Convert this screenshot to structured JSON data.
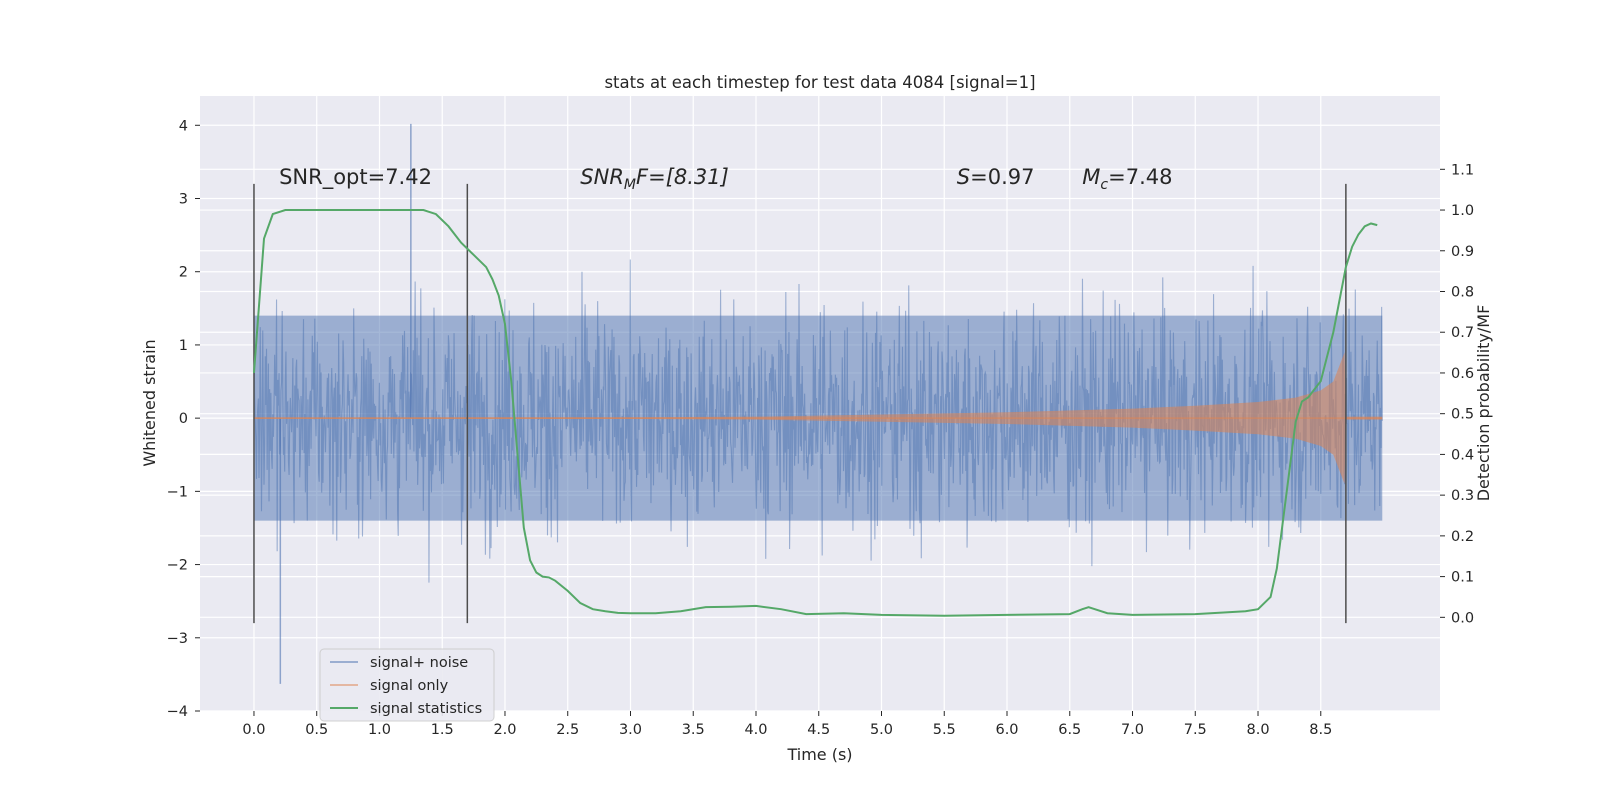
{
  "chart_data": {
    "type": "line",
    "title": "stats at each timestep for test data 4084 [signal=1]",
    "xlabel": "Time (s)",
    "ylabel": "Whitened strain",
    "ylabel_right": "Detection probability/MF",
    "xlim": [
      -0.43,
      9.45
    ],
    "ylim": [
      -4.0,
      4.4
    ],
    "ylim_right": [
      -0.23,
      1.28
    ],
    "xticks": [
      0.0,
      0.5,
      1.0,
      1.5,
      2.0,
      2.5,
      3.0,
      3.5,
      4.0,
      4.5,
      5.0,
      5.5,
      6.0,
      6.5,
      7.0,
      7.5,
      8.0,
      8.5
    ],
    "xtick_labels": [
      "0.0",
      "0.5",
      "1.0",
      "1.5",
      "2.0",
      "2.5",
      "3.0",
      "3.5",
      "4.0",
      "4.5",
      "5.0",
      "5.5",
      "6.0",
      "6.5",
      "7.0",
      "7.5",
      "8.0",
      "8.5"
    ],
    "yticks": [
      4,
      3,
      2,
      1,
      0,
      -1,
      -2,
      -3,
      -4
    ],
    "ytick_labels": [
      "4",
      "3",
      "2",
      "1",
      "0",
      "−1",
      "−2",
      "−3",
      "−4"
    ],
    "yticks_right": [
      1.1,
      1.0,
      0.9,
      0.8,
      0.7,
      0.6,
      0.5,
      0.4,
      0.3,
      0.2,
      0.1,
      0.0
    ],
    "ytick_labels_right": [
      "1.1",
      "1.0",
      "0.9",
      "0.8",
      "0.7",
      "0.6",
      "0.5",
      "0.4",
      "0.3",
      "0.2",
      "0.1",
      "0.0"
    ],
    "grid": true,
    "legend_position": "lower-left",
    "legend": [
      "signal+ noise",
      "signal only",
      "signal statistics"
    ],
    "series": [
      {
        "name": "signal+ noise",
        "color": "#4c72b0",
        "t_range": [
          0.0,
          8.99
        ],
        "core_amplitude": 1.4,
        "max_value": 4.02,
        "min_value": -3.63
      },
      {
        "name": "signal only",
        "color": "#dd8452",
        "envelope_t": [
          0.0,
          3.0,
          4.0,
          5.0,
          6.0,
          7.0,
          7.5,
          8.0,
          8.3,
          8.5,
          8.6,
          8.69,
          8.7,
          8.99
        ],
        "envelope_amp": [
          0.01,
          0.012,
          0.02,
          0.05,
          0.08,
          0.13,
          0.17,
          0.22,
          0.28,
          0.38,
          0.5,
          0.9,
          0.02,
          0.02
        ]
      },
      {
        "name": "signal statistics",
        "color": "#55a868",
        "axis": "right",
        "t": [
          0.0,
          0.08,
          0.15,
          0.25,
          0.4,
          0.6,
          0.8,
          1.0,
          1.2,
          1.35,
          1.45,
          1.55,
          1.65,
          1.75,
          1.85,
          1.9,
          1.95,
          2.0,
          2.05,
          2.1,
          2.15,
          2.2,
          2.25,
          2.3,
          2.35,
          2.4,
          2.5,
          2.6,
          2.7,
          2.8,
          2.9,
          3.0,
          3.2,
          3.4,
          3.6,
          3.8,
          4.0,
          4.2,
          4.4,
          4.7,
          5.0,
          5.5,
          6.0,
          6.5,
          6.6,
          6.65,
          6.7,
          6.8,
          7.0,
          7.5,
          7.9,
          8.0,
          8.05,
          8.1,
          8.15,
          8.2,
          8.25,
          8.3,
          8.35,
          8.4,
          8.5,
          8.55,
          8.6,
          8.65,
          8.7,
          8.75,
          8.8,
          8.85,
          8.9,
          8.95
        ],
        "values": [
          0.6,
          0.93,
          0.99,
          1.0,
          1.0,
          1.0,
          1.0,
          1.0,
          1.0,
          1.0,
          0.99,
          0.96,
          0.92,
          0.89,
          0.86,
          0.83,
          0.79,
          0.72,
          0.58,
          0.4,
          0.22,
          0.14,
          0.11,
          0.1,
          0.098,
          0.09,
          0.065,
          0.035,
          0.02,
          0.015,
          0.011,
          0.01,
          0.01,
          0.015,
          0.025,
          0.026,
          0.028,
          0.02,
          0.008,
          0.01,
          0.006,
          0.004,
          0.006,
          0.008,
          0.02,
          0.025,
          0.02,
          0.01,
          0.006,
          0.008,
          0.015,
          0.02,
          0.035,
          0.05,
          0.12,
          0.24,
          0.36,
          0.48,
          0.53,
          0.54,
          0.58,
          0.64,
          0.7,
          0.78,
          0.86,
          0.91,
          0.94,
          0.96,
          0.967,
          0.963
        ]
      }
    ],
    "vlines_t": [
      0.0,
      1.7,
      8.7
    ],
    "vline_range": [
      -2.8,
      3.2
    ],
    "annotations": [
      {
        "t": 0.2,
        "y": 3.2,
        "text": "SNR_opt=7.42"
      },
      {
        "t": 2.6,
        "y": 3.2,
        "base": "SNR",
        "sub": "M",
        "rest": "F=[8.31]",
        "italic_base": true
      },
      {
        "t": 5.6,
        "y": 3.2,
        "base": "S",
        "sub": "",
        "rest": "=0.97",
        "italic_base": true
      },
      {
        "t": 6.6,
        "y": 3.2,
        "base": "M",
        "sub": "c",
        "rest": "=7.48",
        "italic_base": true
      }
    ]
  }
}
